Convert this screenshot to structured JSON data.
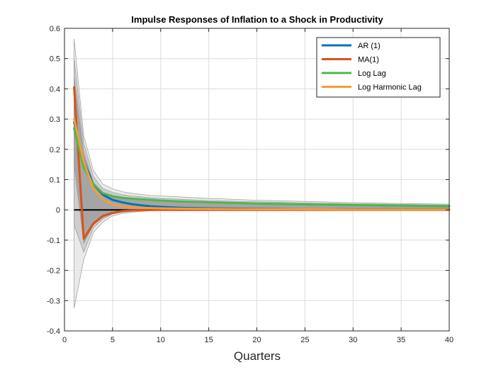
{
  "chart_data": {
    "type": "line",
    "title": "Impulse Responses of Inflation to a Shock in Productivity",
    "xlabel": "Quarters",
    "ylabel": "",
    "xlim": [
      0,
      40
    ],
    "ylim": [
      -0.4,
      0.6
    ],
    "xticks": [
      0,
      5,
      10,
      15,
      20,
      25,
      30,
      35,
      40
    ],
    "yticks": [
      -0.4,
      -0.3,
      -0.2,
      -0.1,
      0,
      0.1,
      0.2,
      0.3,
      0.4,
      0.5,
      0.6
    ],
    "xtick_labels": [
      "0",
      "5",
      "10",
      "15",
      "20",
      "25",
      "30",
      "35",
      "40"
    ],
    "ytick_labels": [
      "-0.4",
      "-0.3",
      "-0.2",
      "-0.1",
      "0",
      "0.1",
      "0.2",
      "0.3",
      "0.4",
      "0.5",
      "0.6"
    ],
    "grid": true,
    "legend_position": "top-right",
    "zero_line_color": "#000000",
    "x": [
      1,
      2,
      3,
      4,
      5,
      6,
      7,
      8,
      9,
      10,
      12,
      15,
      20,
      25,
      30,
      35,
      40
    ],
    "series": [
      {
        "name": "AR (1)",
        "color": "#0072BD",
        "values": [
          0.29,
          0.16,
          0.085,
          0.05,
          0.033,
          0.025,
          0.019,
          0.015,
          0.012,
          0.01,
          0.007,
          0.005,
          0.003,
          0.002,
          0.002,
          0.002,
          0.002
        ]
      },
      {
        "name": "MA(1)",
        "color": "#D95319",
        "values": [
          0.405,
          -0.095,
          -0.045,
          -0.02,
          -0.01,
          -0.004,
          -0.002,
          -0.001,
          0,
          0,
          0,
          0,
          0,
          0,
          0,
          0,
          0
        ]
      },
      {
        "name": "Log Lag",
        "color": "#4DB848",
        "values": [
          0.27,
          0.14,
          0.085,
          0.055,
          0.045,
          0.04,
          0.037,
          0.035,
          0.033,
          0.031,
          0.028,
          0.025,
          0.021,
          0.018,
          0.016,
          0.014,
          0.012
        ]
      },
      {
        "name": "Log Harmonic Lag",
        "color": "#F39C38",
        "values": [
          0.3,
          0.16,
          0.07,
          0.035,
          0.018,
          0.012,
          0.009,
          0.007,
          0.006,
          0.005,
          0.004,
          0.003,
          0.002,
          0.002,
          0.001,
          0.001,
          0.001
        ]
      }
    ],
    "bands": [
      {
        "fill": "#e6e6e6",
        "upper": [
          0.565,
          0.245,
          0.13,
          0.085,
          0.07,
          0.06,
          0.055,
          0.051,
          0.048,
          0.046,
          0.043,
          0.038,
          0.032,
          0.028,
          0.024,
          0.021,
          0.019
        ],
        "lower": [
          -0.325,
          -0.165,
          -0.075,
          -0.04,
          -0.02,
          -0.012,
          -0.008,
          -0.005,
          -0.003,
          -0.002,
          -0.001,
          0,
          0,
          0,
          0,
          0,
          0
        ]
      },
      {
        "fill": "#c8c8c8",
        "upper": [
          0.5,
          0.22,
          0.11,
          0.07,
          0.058,
          0.05,
          0.046,
          0.043,
          0.04,
          0.038,
          0.035,
          0.031,
          0.027,
          0.023,
          0.02,
          0.018,
          0.016
        ],
        "lower": [
          -0.05,
          -0.14,
          -0.06,
          -0.03,
          -0.014,
          -0.008,
          -0.005,
          -0.003,
          -0.002,
          -0.001,
          0,
          0,
          0,
          0,
          0,
          0,
          0
        ]
      },
      {
        "fill": "#9e9e9e",
        "upper": [
          0.44,
          0.19,
          0.09,
          0.058,
          0.048,
          0.042,
          0.039,
          0.036,
          0.034,
          0.032,
          0.029,
          0.026,
          0.022,
          0.019,
          0.017,
          0.015,
          0.013
        ],
        "lower": [
          0.15,
          -0.11,
          -0.05,
          -0.025,
          -0.012,
          -0.006,
          -0.004,
          -0.002,
          -0.001,
          0,
          0,
          0,
          0,
          0,
          0,
          0,
          0
        ]
      }
    ]
  }
}
